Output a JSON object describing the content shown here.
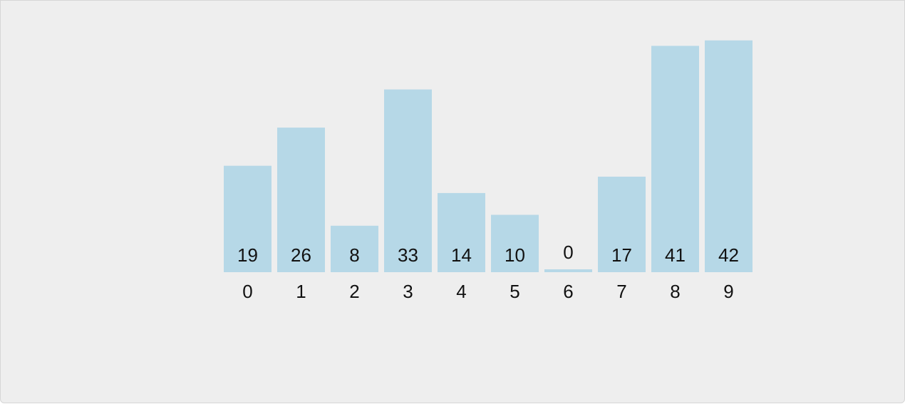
{
  "chart_data": {
    "type": "bar",
    "categories": [
      "0",
      "1",
      "2",
      "3",
      "4",
      "5",
      "6",
      "7",
      "8",
      "9"
    ],
    "values": [
      19,
      26,
      8,
      33,
      14,
      10,
      0,
      17,
      41,
      42
    ],
    "color": "#b6d8e7"
  }
}
